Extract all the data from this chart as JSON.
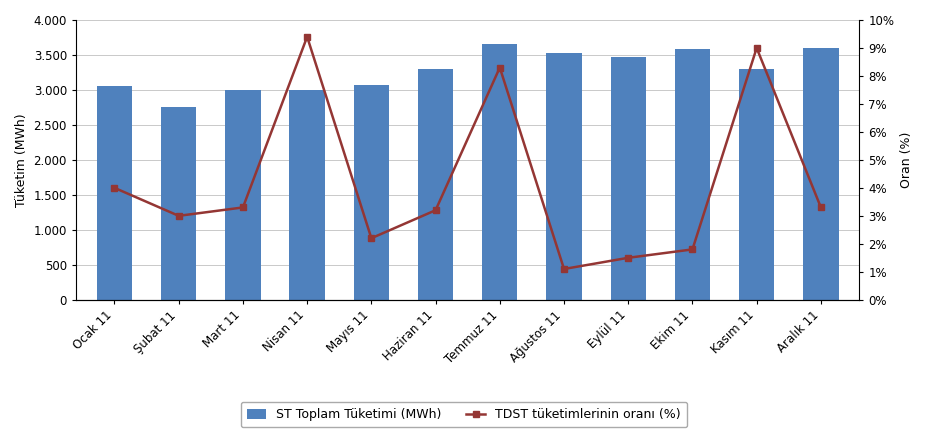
{
  "categories": [
    "Ocak 11",
    "Şubat 11",
    "Mart 11",
    "Nisan 11",
    "Mayıs 11",
    "Haziran 11",
    "Temmuz 11",
    "Ağustos 11",
    "Eylül 11",
    "Ekim 11",
    "Kasım 11",
    "Aralık 11"
  ],
  "bar_values": [
    3050,
    2750,
    3000,
    3000,
    3075,
    3300,
    3650,
    3530,
    3470,
    3580,
    3300,
    3600
  ],
  "line_values": [
    4.0,
    3.0,
    3.3,
    9.4,
    2.2,
    3.2,
    8.3,
    1.1,
    1.5,
    1.8,
    9.0,
    3.3
  ],
  "bar_color": "#4F81BD",
  "line_color": "#943634",
  "bar_label": "ST Toplam Tüketimi (MWh)",
  "line_label": "TDST tüketimlerinin oranı (%)",
  "ylabel_left": "Tüketim (MWh)",
  "ylabel_right": "Oran (%)",
  "ylim_left": [
    0,
    4000
  ],
  "ylim_right": [
    0,
    10
  ],
  "yticks_left": [
    0,
    500,
    1000,
    1500,
    2000,
    2500,
    3000,
    3500,
    4000
  ],
  "yticks_right_vals": [
    0,
    1,
    2,
    3,
    4,
    5,
    6,
    7,
    8,
    9,
    10
  ],
  "yticks_right_labels": [
    "0%",
    "1%",
    "2%",
    "3%",
    "4%",
    "5%",
    "6%",
    "7%",
    "8%",
    "9%",
    "10%"
  ],
  "background_color": "#ffffff",
  "axis_fontsize": 9,
  "tick_fontsize": 8.5,
  "legend_fontsize": 9
}
